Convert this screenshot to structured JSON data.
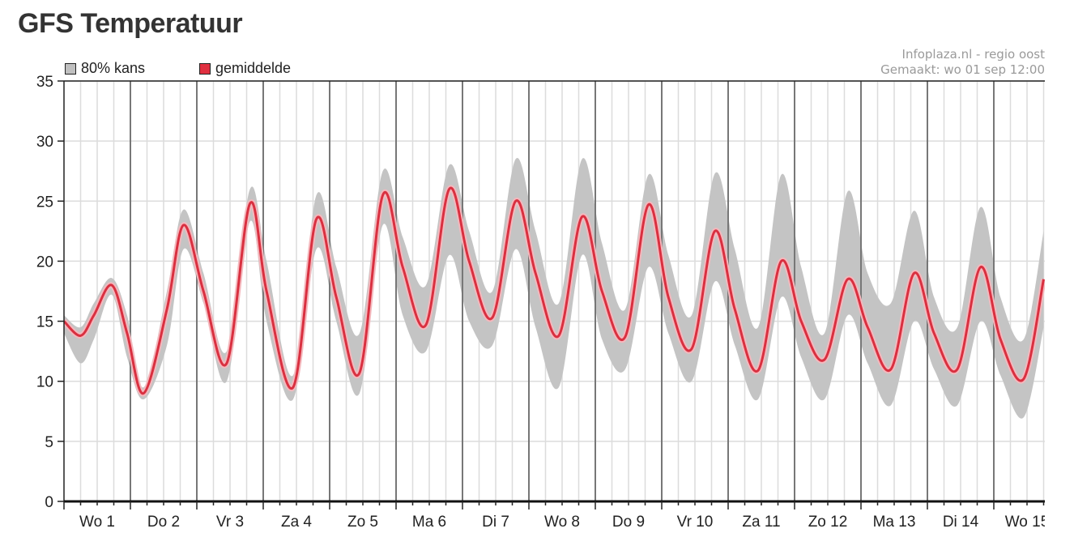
{
  "page": {
    "title": "GFS Temperatuur"
  },
  "credits": {
    "line1": "Infoplaza.nl - regio oost",
    "line2": "Gemaakt: wo 01 sep 12:00"
  },
  "legend": [
    {
      "label": "80% kans",
      "color": "#c0c0c0"
    },
    {
      "label": "gemiddelde",
      "color": "#e03040"
    }
  ],
  "colors": {
    "band": "#c4c4c4",
    "mean": "#d93040",
    "mean_glow": "#f4b8bd",
    "day_line": "#777777",
    "grid": "#dcdcdc"
  },
  "chart_data": {
    "type": "area",
    "xlabel": "",
    "ylabel": "",
    "ylim": [
      0,
      35
    ],
    "y_ticks": [
      0,
      5,
      10,
      15,
      20,
      25,
      30,
      35
    ],
    "x_unit": "days since wo 01 00:00",
    "xlim": [
      0,
      14.75
    ],
    "day_labels": [
      "Wo 1",
      "Do 2",
      "Vr 3",
      "Za 4",
      "Zo 5",
      "Ma 6",
      "Di 7",
      "Wo 8",
      "Do 9",
      "Vr 10",
      "Za 11",
      "Zo 12",
      "Ma 13",
      "Di 14",
      "Wo 15"
    ],
    "grid": true,
    "series": [
      {
        "name": "gemiddelde",
        "x": [
          0,
          0.25,
          0.45,
          0.72,
          0.95,
          1.2,
          1.55,
          1.8,
          2.1,
          2.45,
          2.8,
          3.05,
          3.45,
          3.8,
          4.1,
          4.45,
          4.8,
          5.1,
          5.45,
          5.8,
          6.1,
          6.45,
          6.8,
          7.1,
          7.45,
          7.8,
          8.1,
          8.45,
          8.8,
          9.1,
          9.45,
          9.8,
          10.1,
          10.45,
          10.8,
          11.1,
          11.45,
          11.8,
          12.1,
          12.45,
          12.8,
          13.1,
          13.45,
          13.8,
          14.1,
          14.45,
          14.75
        ],
        "values": [
          15.0,
          13.8,
          15.5,
          18.0,
          14.0,
          9.0,
          16.0,
          23.0,
          17.5,
          11.5,
          24.8,
          17.5,
          9.5,
          23.5,
          17.0,
          10.7,
          25.5,
          19.5,
          14.7,
          26.0,
          20.0,
          15.3,
          25.0,
          19.0,
          13.8,
          23.7,
          17.5,
          13.7,
          24.7,
          17.0,
          12.7,
          22.5,
          16.0,
          10.9,
          20.0,
          15.0,
          11.8,
          18.5,
          14.5,
          11.0,
          19.0,
          14.0,
          11.0,
          19.5,
          13.5,
          10.2,
          18.5
        ]
      },
      {
        "name": "80% kans",
        "x": [
          0,
          0.25,
          0.45,
          0.72,
          0.95,
          1.2,
          1.55,
          1.8,
          2.1,
          2.45,
          2.8,
          3.05,
          3.45,
          3.8,
          4.1,
          4.45,
          4.8,
          5.1,
          5.45,
          5.8,
          6.1,
          6.45,
          6.8,
          7.1,
          7.45,
          7.8,
          8.1,
          8.45,
          8.8,
          9.1,
          9.45,
          9.8,
          10.1,
          10.45,
          10.8,
          11.1,
          11.45,
          11.8,
          12.1,
          12.45,
          12.8,
          13.1,
          13.45,
          13.8,
          14.1,
          14.45,
          14.75
        ],
        "upper": [
          15.5,
          14.5,
          16.5,
          18.6,
          15.5,
          9.5,
          17.5,
          24.3,
          19.0,
          12.5,
          26.0,
          20.0,
          10.5,
          25.5,
          19.5,
          14.0,
          27.5,
          22.0,
          18.0,
          28.0,
          22.5,
          17.5,
          28.5,
          22.5,
          16.5,
          28.5,
          21.5,
          16.0,
          27.2,
          20.5,
          15.5,
          27.3,
          21.0,
          14.5,
          27.2,
          19.5,
          14.0,
          25.8,
          19.0,
          16.5,
          24.2,
          17.0,
          14.5,
          24.5,
          17.0,
          13.5,
          22.5
        ],
        "lower": [
          14.0,
          11.5,
          13.5,
          17.2,
          12.0,
          8.5,
          13.0,
          21.0,
          16.5,
          10.0,
          23.3,
          15.0,
          8.5,
          21.0,
          15.0,
          9.0,
          23.0,
          15.5,
          12.5,
          20.5,
          15.0,
          13.0,
          21.0,
          14.5,
          9.5,
          20.5,
          13.5,
          11.0,
          19.5,
          14.0,
          10.0,
          18.3,
          13.0,
          8.5,
          17.0,
          12.0,
          8.5,
          15.5,
          11.5,
          8.0,
          15.0,
          11.0,
          8.0,
          15.0,
          10.5,
          7.0,
          14.5
        ]
      }
    ]
  }
}
